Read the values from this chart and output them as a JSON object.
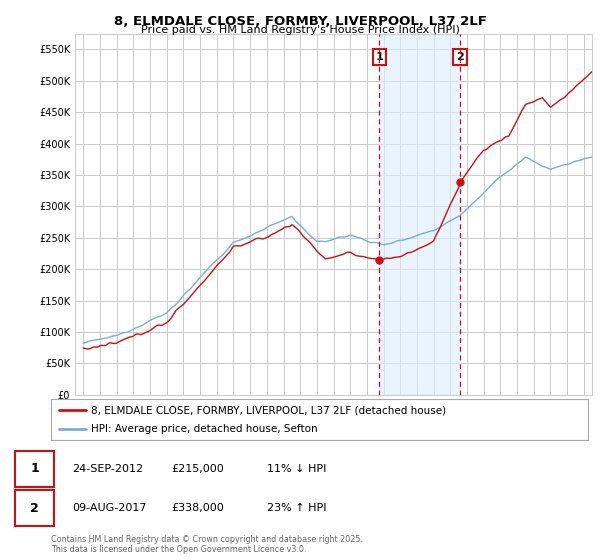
{
  "title": "8, ELMDALE CLOSE, FORMBY, LIVERPOOL, L37 2LF",
  "subtitle": "Price paid vs. HM Land Registry's House Price Index (HPI)",
  "ylim": [
    0,
    575000
  ],
  "yticks": [
    0,
    50000,
    100000,
    150000,
    200000,
    250000,
    300000,
    350000,
    400000,
    450000,
    500000,
    550000
  ],
  "hpi_color": "#7aaed6",
  "price_color": "#cc1111",
  "sale1_year": 2012.75,
  "sale1_price": 215000,
  "sale1_label_date": "24-SEP-2012",
  "sale1_hpi_pct": "11% ↓ HPI",
  "sale2_year": 2017.58,
  "sale2_price": 338000,
  "sale2_label_date": "09-AUG-2017",
  "sale2_hpi_pct": "23% ↑ HPI",
  "legend_label_price": "8, ELMDALE CLOSE, FORMBY, LIVERPOOL, L37 2LF (detached house)",
  "legend_label_hpi": "HPI: Average price, detached house, Sefton",
  "footnote": "Contains HM Land Registry data © Crown copyright and database right 2025.\nThis data is licensed under the Open Government Licence v3.0.",
  "background_color": "#ffffff",
  "grid_color": "#cccccc",
  "shade_color": "#ddeeff",
  "xmin": 1994.5,
  "xmax": 2025.5
}
